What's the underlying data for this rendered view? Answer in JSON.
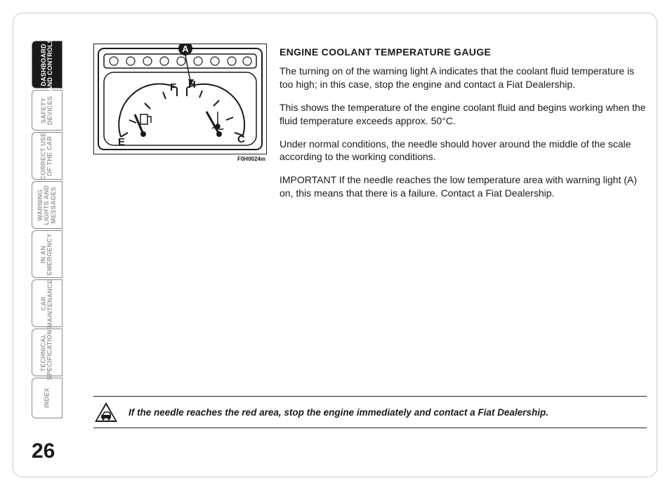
{
  "page": {
    "number": "26"
  },
  "tabs": [
    {
      "label": "DASHBOARD\nAND CONTROLS",
      "active": true,
      "short": false
    },
    {
      "label": "SAFETY\nDEVICES",
      "active": false,
      "short": true
    },
    {
      "label": "CORRECT USE\nOF THE CAR",
      "active": false,
      "short": false
    },
    {
      "label": "WARNING\nLIGHTS AND\nMESSAGES",
      "active": false,
      "short": false
    },
    {
      "label": "IN AN\nEMERGENCY",
      "active": false,
      "short": false
    },
    {
      "label": "CAR\nMAINTENANCE",
      "active": false,
      "short": false
    },
    {
      "label": "TECHNICAL\nSPECIFICATIONS",
      "active": false,
      "short": false
    },
    {
      "label": "INDEX",
      "active": false,
      "short": true
    }
  ],
  "figure": {
    "code": "F0H0024m",
    "callout_letter": "A",
    "gauge_labels": {
      "fuel_full": "F",
      "fuel_empty": "E",
      "temp_hot": "H",
      "temp_cold": "C"
    },
    "colors": {
      "stroke": "#1a1a1a",
      "fill": "#ffffff",
      "arrow": "#1a1a1a",
      "badge_bg": "#1a1a1a",
      "badge_text": "#ffffff"
    }
  },
  "body": {
    "heading": "ENGINE COOLANT TEMPERATURE GAUGE",
    "p1": "The turning on of the warning light A indicates that the coolant fluid temperature is too high; in this case, stop the engine and contact a Fiat Dealership.",
    "p2": "This shows the temperature of the engine coolant fluid and begins working when the fluid temperature exceeds approx. 50°C.",
    "p3": "Under normal conditions, the needle should hover around the middle of the scale according to the working conditions.",
    "p4": "IMPORTANT If the needle reaches the low temperature area with warning light (A) on, this means that there is a failure. Contact a Fiat Dealership."
  },
  "warning": {
    "text": "If the needle reaches the red area, stop the engine immediately and contact a Fiat Dealership."
  }
}
